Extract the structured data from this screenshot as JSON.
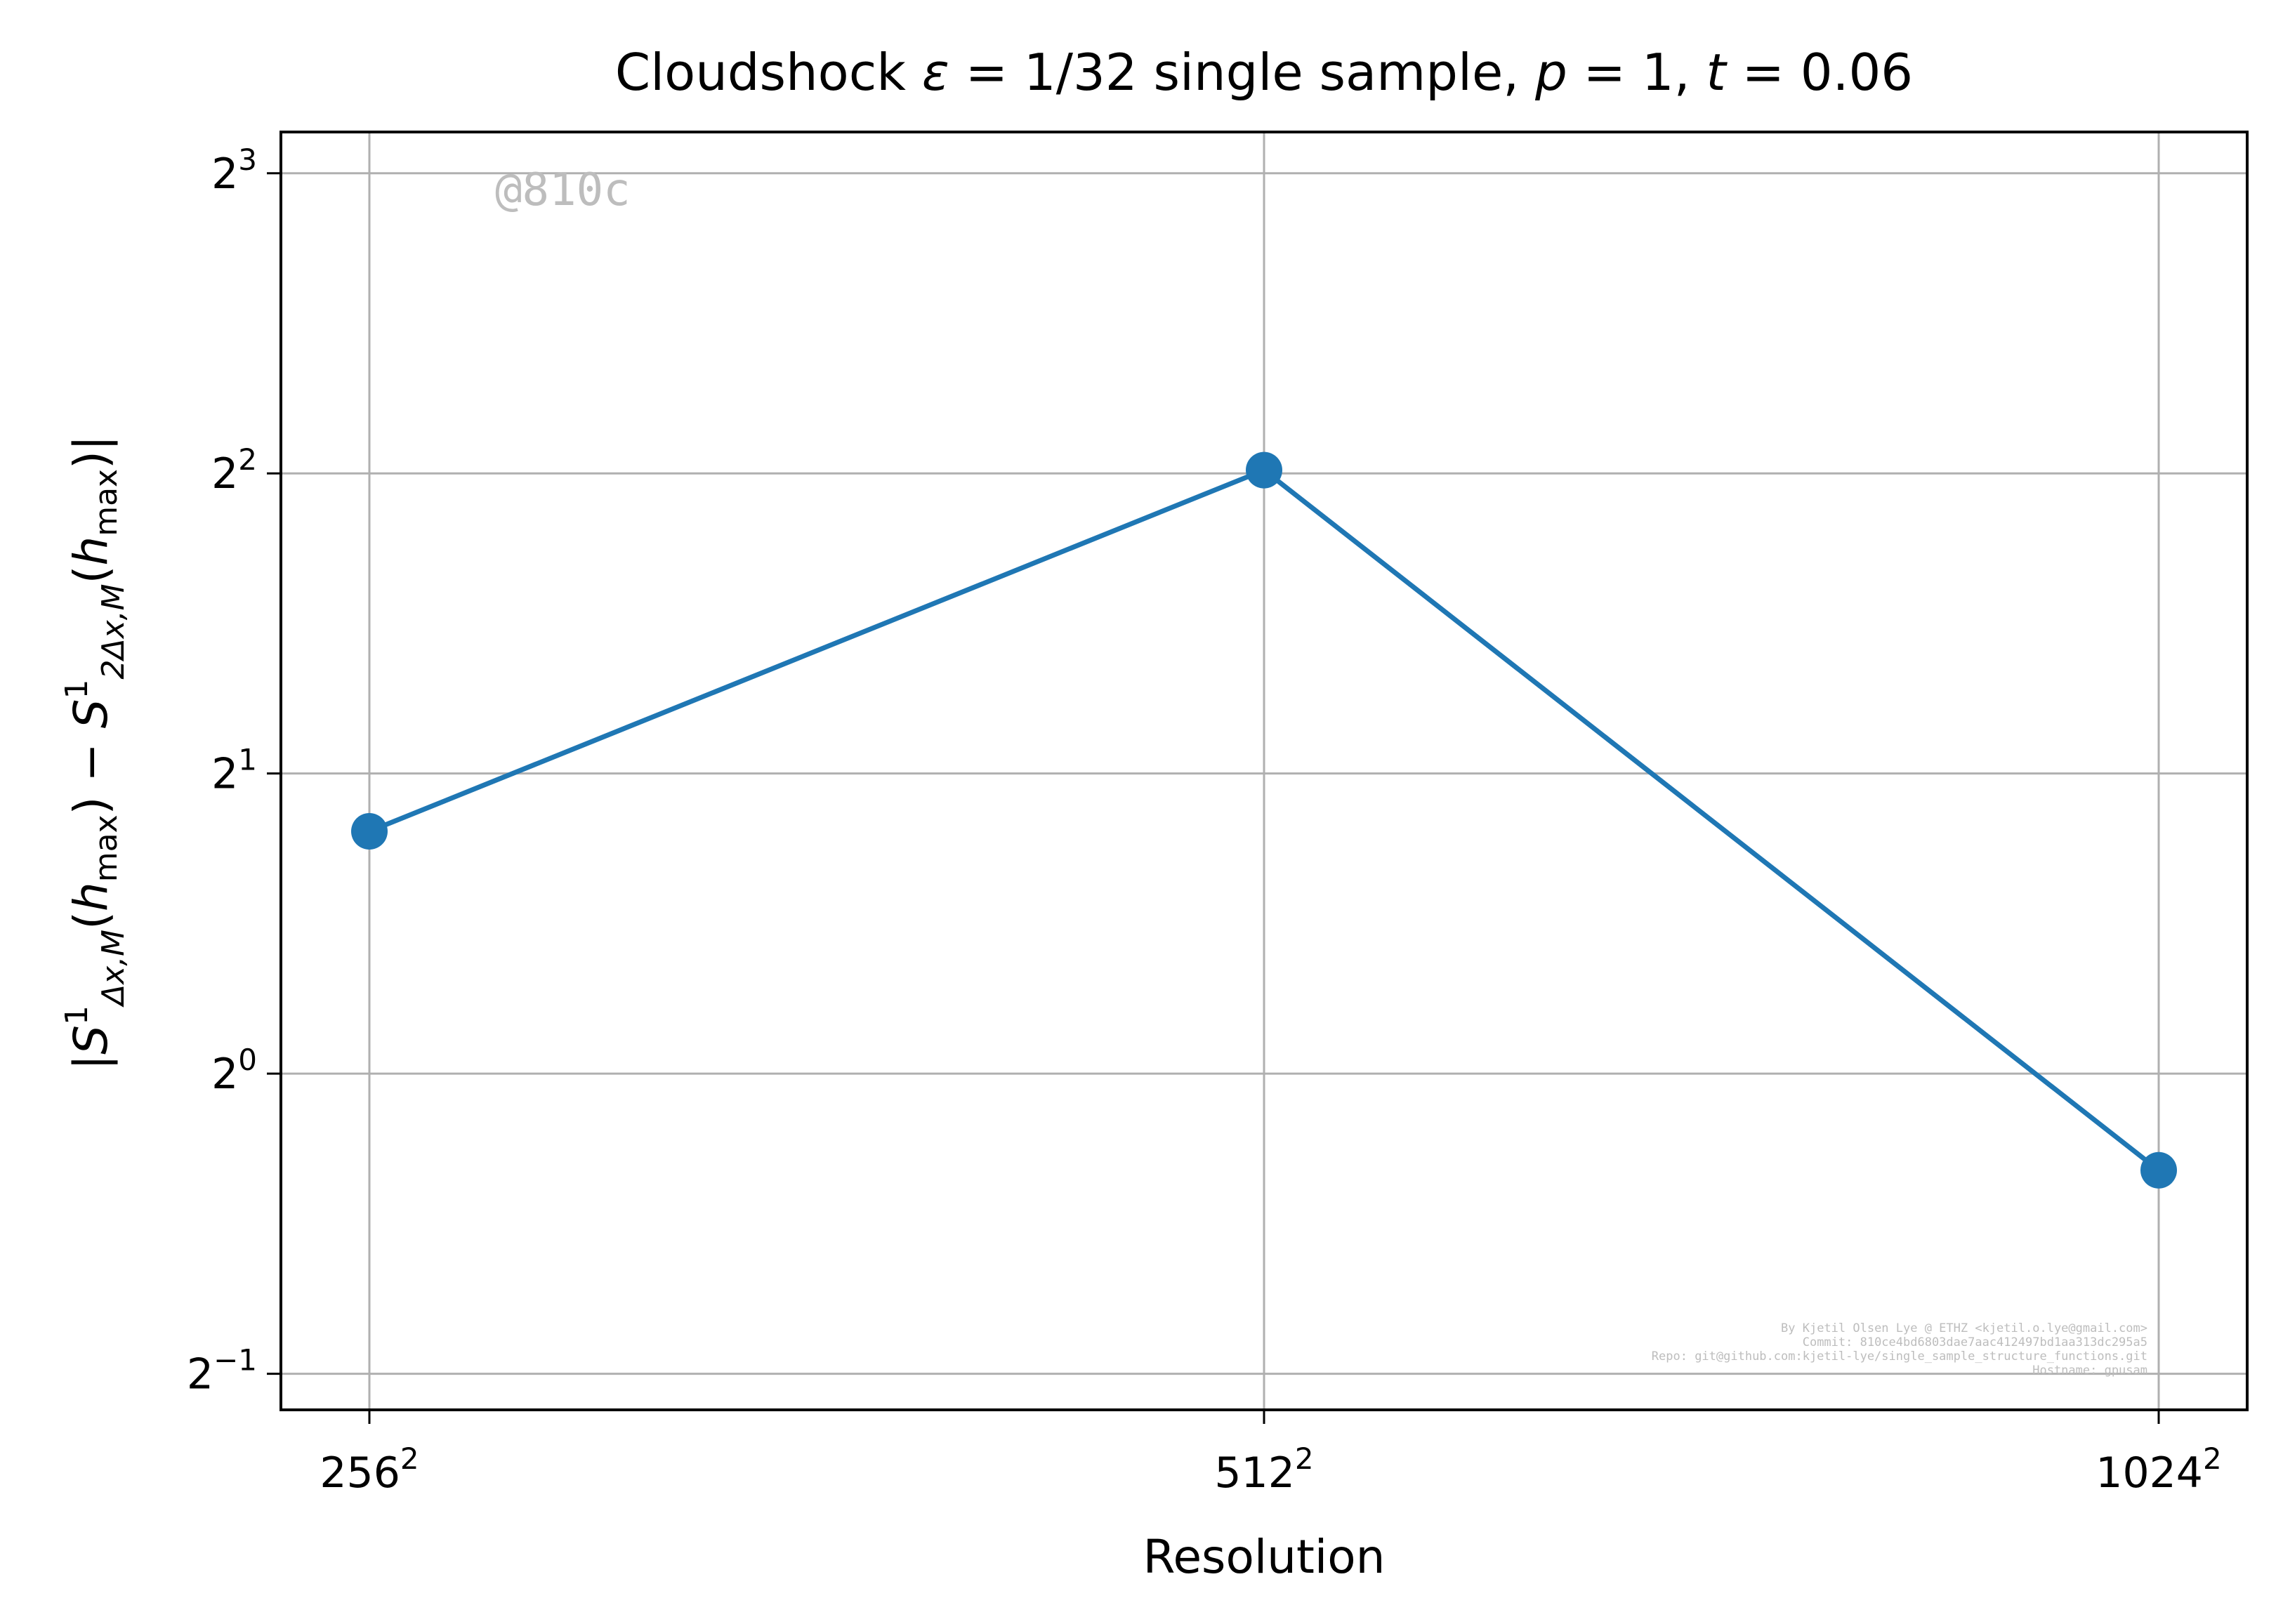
{
  "chart_data": {
    "type": "line",
    "title": "Cloudshock ε = 1/32 single sample, p = 1, t = 0.06",
    "xlabel": "Resolution",
    "ylabel": "|S¹Δx,M(hmax) − S¹2Δx,M(hmax)|",
    "y_scale": "log2",
    "ylim": [
      0.46,
      8.8
    ],
    "grid": true,
    "categories": [
      "256²",
      "512²",
      "1024²"
    ],
    "x_ticks": [
      {
        "base": "256",
        "exp": "2"
      },
      {
        "base": "512",
        "exp": "2"
      },
      {
        "base": "1024",
        "exp": "2"
      }
    ],
    "y_ticks": [
      {
        "value": 0.5,
        "base": "2",
        "exp": "−1"
      },
      {
        "value": 1,
        "base": "2",
        "exp": "0"
      },
      {
        "value": 2,
        "base": "2",
        "exp": "1"
      },
      {
        "value": 4,
        "base": "2",
        "exp": "2"
      },
      {
        "value": 8,
        "base": "2",
        "exp": "3"
      }
    ],
    "series": [
      {
        "values": [
          1.75,
          4.03,
          0.8
        ],
        "color": "#1f77b4"
      }
    ]
  },
  "watermark": "@810c",
  "footer_lines": [
    "By Kjetil Olsen Lye @ ETHZ <kjetil.o.lye@gmail.com>",
    "Commit: 810ce4bd6803dae7aac412497bd1aa313dc295a5",
    "Repo: git@github.com:kjetil-lye/single_sample_structure_functions.git",
    "Hostname: gpusam"
  ]
}
